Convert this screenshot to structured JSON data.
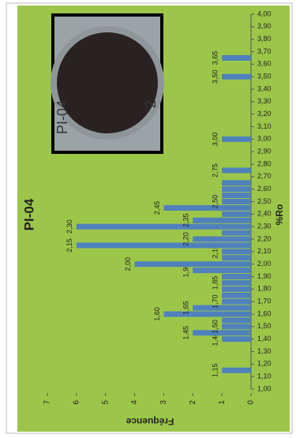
{
  "chart_data": {
    "type": "bar",
    "title": "PI-04",
    "x_label": "%Ro",
    "y_label": "Fréquence",
    "inset_labels": [
      "PI-04",
      "2"
    ],
    "x": [
      1.15,
      1.4,
      1.45,
      1.5,
      1.55,
      1.6,
      1.65,
      1.7,
      1.75,
      1.8,
      1.85,
      1.9,
      1.95,
      2.0,
      2.05,
      2.1,
      2.15,
      2.2,
      2.25,
      2.3,
      2.35,
      2.4,
      2.45,
      2.5,
      2.55,
      2.6,
      2.65,
      2.75,
      3.0,
      3.5,
      3.65
    ],
    "values": [
      1,
      1,
      2,
      1,
      1,
      3,
      2,
      1,
      1,
      1,
      1,
      1,
      2,
      4,
      1,
      1,
      6,
      2,
      1,
      6,
      2,
      1,
      3,
      1,
      1,
      1,
      1,
      1,
      1,
      1,
      1
    ],
    "x_labels": [
      "1,15",
      "1,40",
      "1,45",
      "1,50",
      null,
      "1,60",
      "1,65",
      "1,70",
      null,
      null,
      "1,85",
      null,
      "1,95",
      "2,00",
      null,
      "2,10",
      "2,15",
      "2,20",
      null,
      "2,30",
      "2,35",
      null,
      "2,45",
      "2,50",
      null,
      null,
      null,
      "2,75",
      "3,00",
      "3,50",
      "3,65"
    ],
    "color": "#4f81bd",
    "background": "#9cc64a",
    "xlim": [
      1.0,
      4.0
    ],
    "xticks": [
      {
        "value": 1.0,
        "label": "1,00"
      },
      {
        "value": 1.1,
        "label": "1,10"
      },
      {
        "value": 1.2,
        "label": "1,20"
      },
      {
        "value": 1.3,
        "label": "1,30"
      },
      {
        "value": 1.4,
        "label": "1,40"
      },
      {
        "value": 1.5,
        "label": "1,50"
      },
      {
        "value": 1.6,
        "label": "1,60"
      },
      {
        "value": 1.7,
        "label": "1,70"
      },
      {
        "value": 1.8,
        "label": "1,80"
      },
      {
        "value": 1.9,
        "label": "1,90"
      },
      {
        "value": 2.0,
        "label": "2,00"
      },
      {
        "value": 2.1,
        "label": "2,10"
      },
      {
        "value": 2.2,
        "label": "2,20"
      },
      {
        "value": 2.3,
        "label": "2,30"
      },
      {
        "value": 2.4,
        "label": "2,40"
      },
      {
        "value": 2.5,
        "label": "2,50"
      },
      {
        "value": 2.6,
        "label": "2,60"
      },
      {
        "value": 2.7,
        "label": "2,70"
      },
      {
        "value": 2.8,
        "label": "2,80"
      },
      {
        "value": 2.9,
        "label": "2,90"
      },
      {
        "value": 3.0,
        "label": "3,00"
      },
      {
        "value": 3.1,
        "label": "3,10"
      },
      {
        "value": 3.2,
        "label": "3,20"
      },
      {
        "value": 3.3,
        "label": "3,30"
      },
      {
        "value": 3.4,
        "label": "3,40"
      },
      {
        "value": 3.5,
        "label": "3,50"
      },
      {
        "value": 3.6,
        "label": "3,60"
      },
      {
        "value": 3.7,
        "label": "3,70"
      },
      {
        "value": 3.8,
        "label": "3,80"
      },
      {
        "value": 3.9,
        "label": "3,90"
      },
      {
        "value": 4.0,
        "label": "4,00"
      }
    ],
    "ylim": [
      0,
      7
    ],
    "yticks": [
      0,
      1,
      2,
      3,
      4,
      5,
      6,
      7
    ],
    "grid": false
  }
}
